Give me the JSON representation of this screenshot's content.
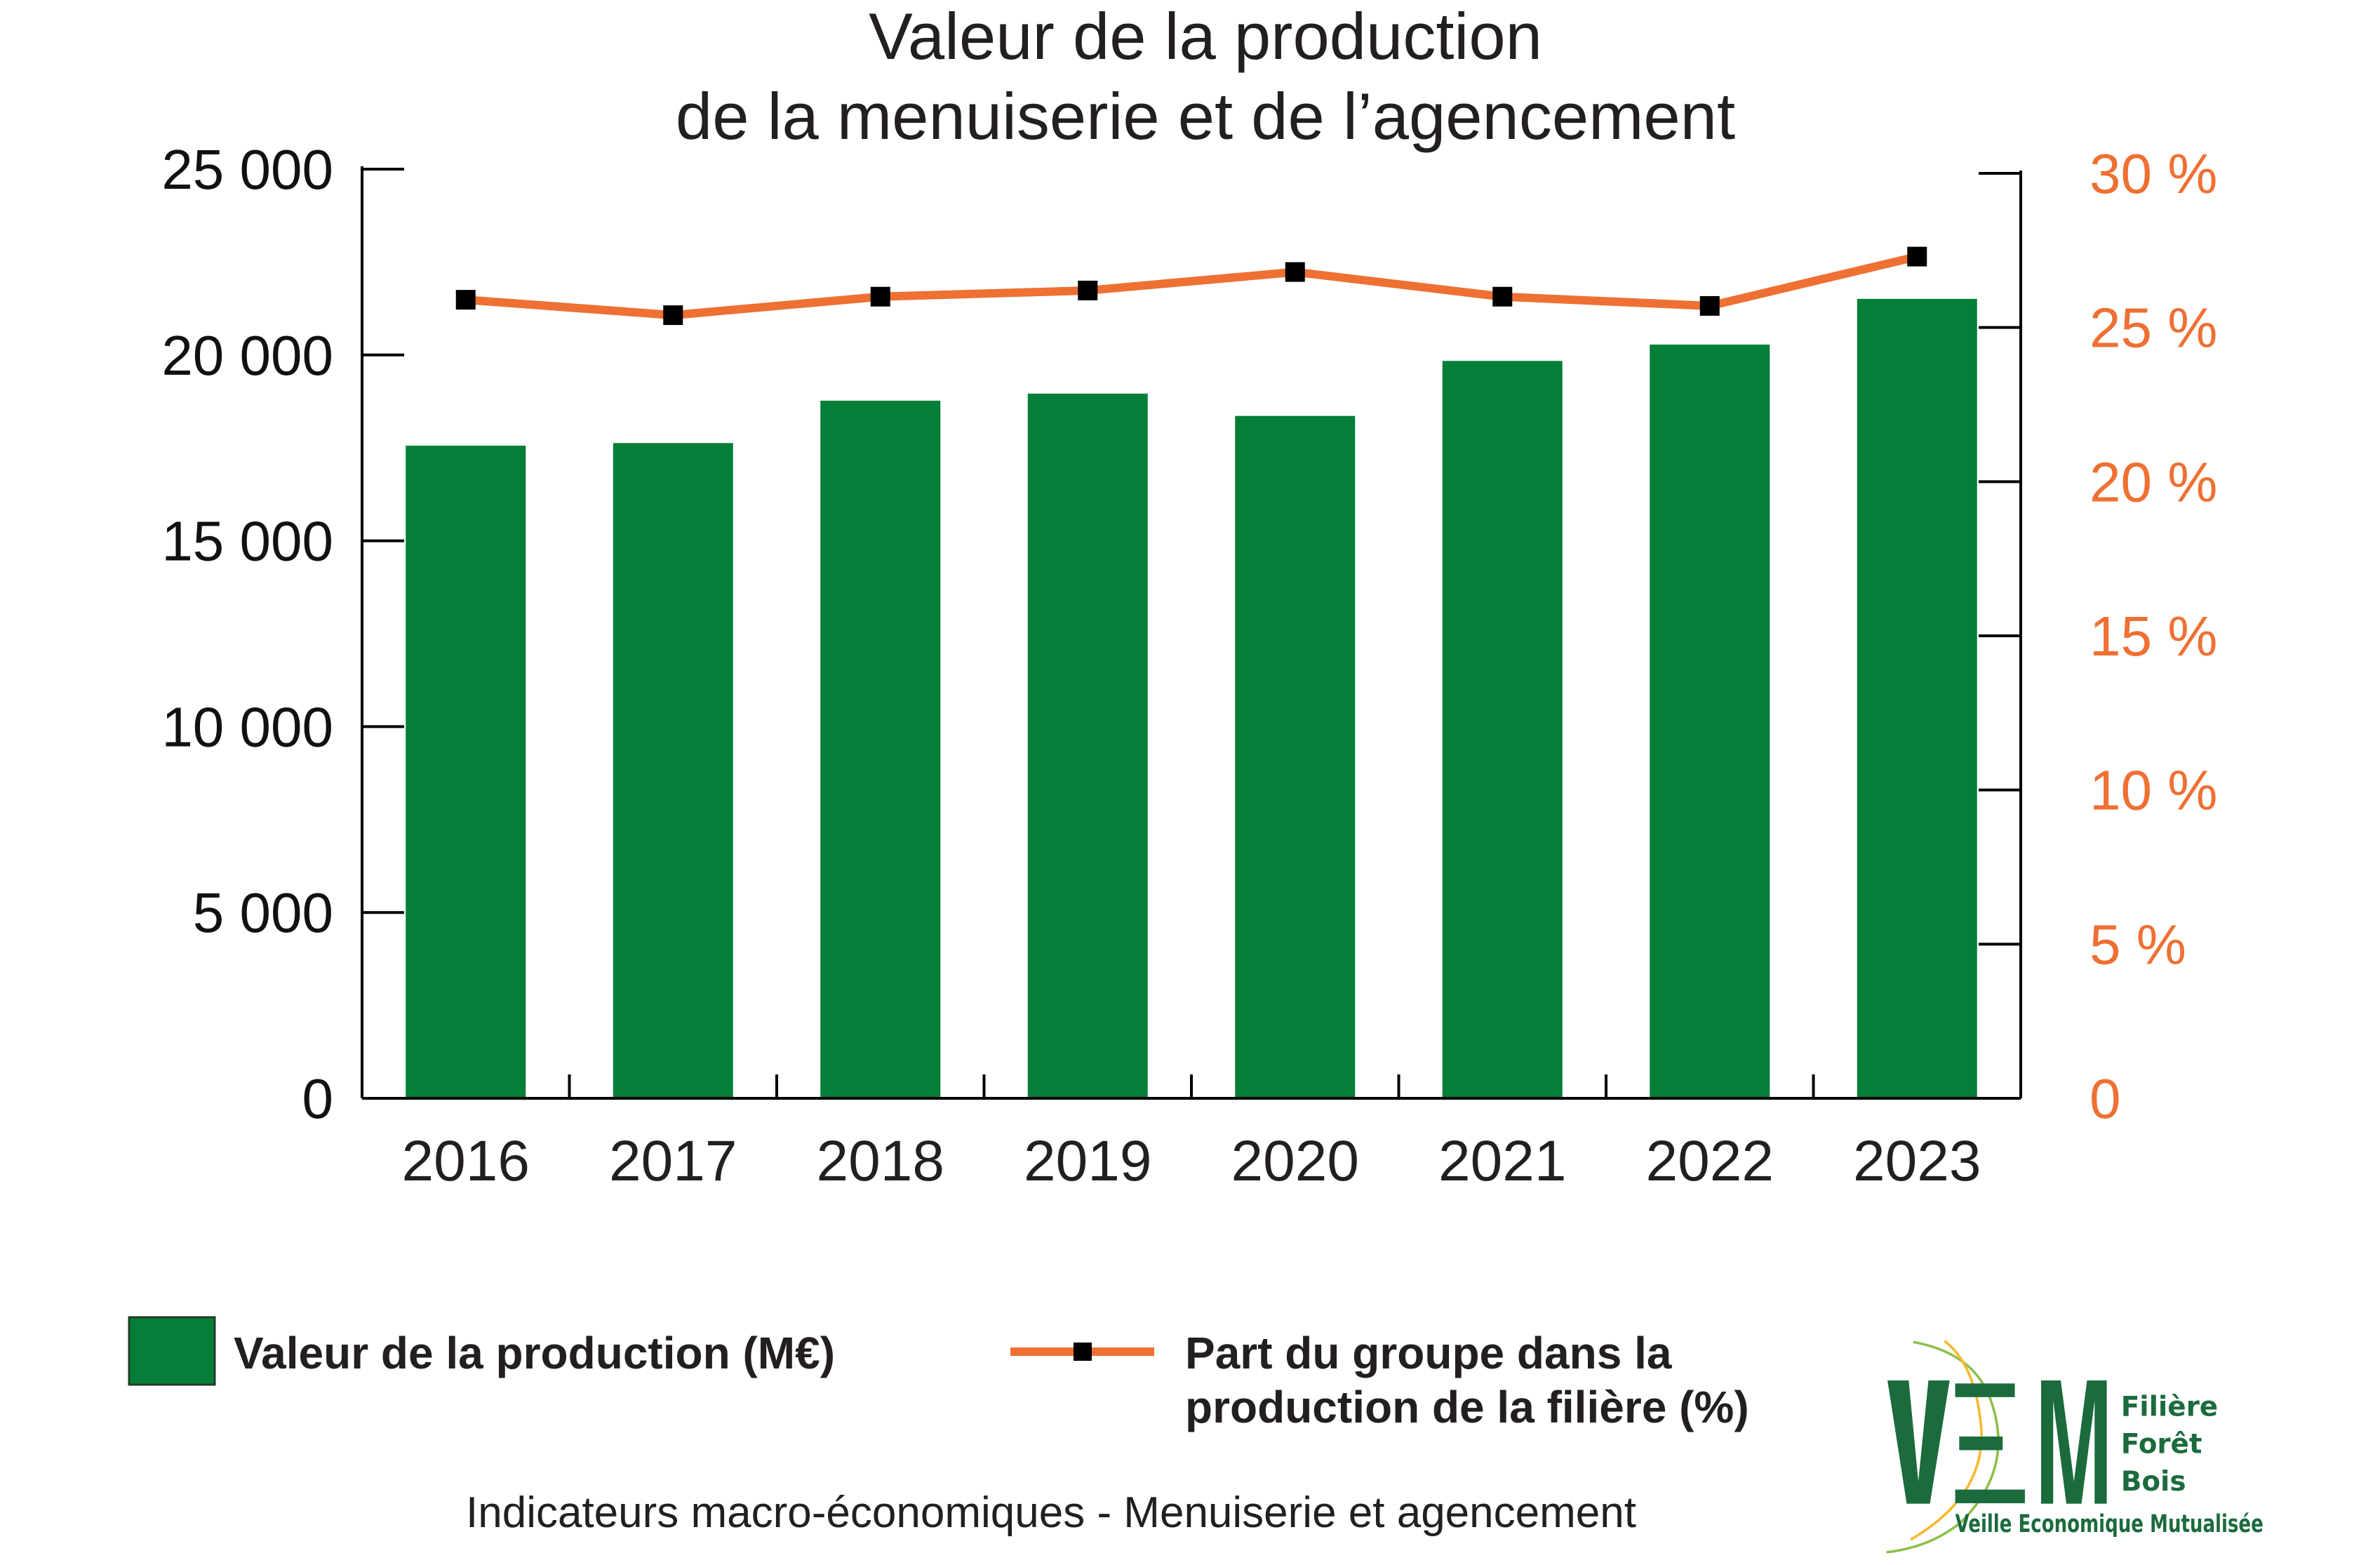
{
  "chart_data": {
    "type": "bar+line",
    "title": [
      "Valeur de la production",
      "de la menuiserie et de l’agencement"
    ],
    "categories": [
      "2016",
      "2017",
      "2018",
      "2019",
      "2020",
      "2021",
      "2022",
      "2023"
    ],
    "series": [
      {
        "name": "Valeur de la production (M€)",
        "type": "bar",
        "axis": "left",
        "color": "#057e37",
        "values": [
          17560,
          17630,
          18770,
          18960,
          18360,
          19840,
          20280,
          21510
        ]
      },
      {
        "name": "Part du groupe dans la production de la filière (%)",
        "type": "line",
        "axis": "right",
        "color": "#ee7033",
        "marker_color": "#000000",
        "values": [
          25.9,
          25.4,
          26.0,
          26.2,
          26.8,
          26.0,
          25.7,
          27.3
        ]
      }
    ],
    "left_axis": {
      "ylim": [
        0,
        25000
      ],
      "ticks": [
        "0",
        "5 000",
        "10 000",
        "15 000",
        "20 000",
        "25 000"
      ]
    },
    "right_axis": {
      "ylim": [
        0,
        30
      ],
      "ticks": [
        "0",
        "5 %",
        "10 %",
        "15 %",
        "20 %",
        "25 %",
        "30 %"
      ],
      "color": "#ee7033"
    },
    "grid": false,
    "legend_placement": "bottom",
    "legend": [
      "Valeur de la production (M€)",
      "Part du groupe dans la",
      "production de la filière (%)"
    ]
  },
  "footer": "Indicateurs macro-économiques - Menuiserie et agencement",
  "logo": {
    "letters": "VEM",
    "line1": "Filière",
    "line2": "Forêt",
    "line3": "Bois",
    "tagline": "Veille Economique Mutualisée"
  }
}
